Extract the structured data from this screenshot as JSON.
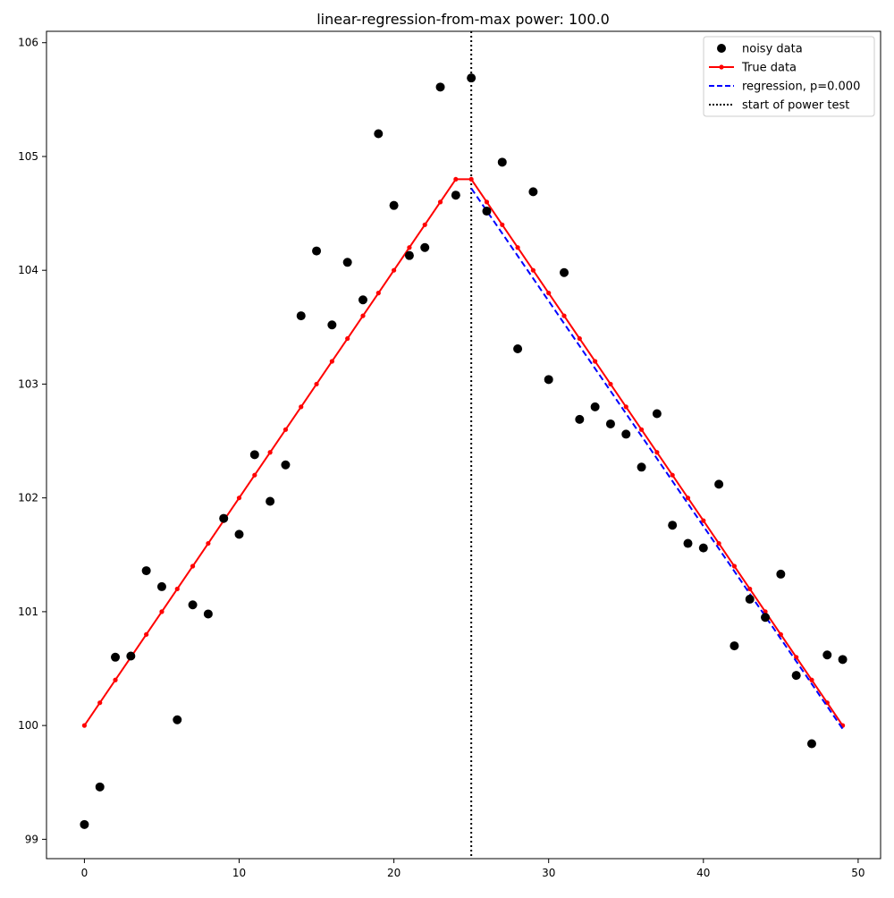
{
  "chart_data": {
    "type": "scatter",
    "title": "linear-regression-from-max power: 100.0",
    "xlabel": "",
    "ylabel": "",
    "xlim": [
      -2.45,
      51.45
    ],
    "ylim": [
      98.83,
      106.1
    ],
    "x_ticks": [
      0,
      10,
      20,
      30,
      40,
      50
    ],
    "y_ticks": [
      99,
      100,
      101,
      102,
      103,
      104,
      105,
      106
    ],
    "grid": false,
    "legend_position": "top-right",
    "series": [
      {
        "name": "noisy data",
        "kind": "scatter",
        "color": "#000000",
        "x": [
          0,
          1,
          2,
          3,
          4,
          5,
          6,
          7,
          8,
          9,
          10,
          11,
          12,
          13,
          14,
          15,
          16,
          17,
          18,
          19,
          20,
          21,
          22,
          23,
          24,
          25,
          26,
          27,
          28,
          29,
          30,
          31,
          32,
          33,
          34,
          35,
          36,
          37,
          38,
          39,
          40,
          41,
          42,
          43,
          44,
          45,
          46,
          47,
          48,
          49
        ],
        "y": [
          99.13,
          99.46,
          100.6,
          100.61,
          101.36,
          101.22,
          100.05,
          101.06,
          100.98,
          101.82,
          101.68,
          102.38,
          101.97,
          102.29,
          103.6,
          104.17,
          103.52,
          104.07,
          103.74,
          105.2,
          104.57,
          104.13,
          104.2,
          105.61,
          104.66,
          105.69,
          104.52,
          104.95,
          103.31,
          104.69,
          103.04,
          103.98,
          102.69,
          102.8,
          102.65,
          102.56,
          102.27,
          102.74,
          101.76,
          101.6,
          101.56,
          102.12,
          100.7,
          101.11,
          100.95,
          101.33,
          100.44,
          99.84,
          100.62,
          100.58
        ]
      },
      {
        "name": "True data",
        "kind": "line-markers",
        "color": "#ff0000",
        "x": [
          0,
          1,
          2,
          3,
          4,
          5,
          6,
          7,
          8,
          9,
          10,
          11,
          12,
          13,
          14,
          15,
          16,
          17,
          18,
          19,
          20,
          21,
          22,
          23,
          24,
          25,
          26,
          27,
          28,
          29,
          30,
          31,
          32,
          33,
          34,
          35,
          36,
          37,
          38,
          39,
          40,
          41,
          42,
          43,
          44,
          45,
          46,
          47,
          48,
          49
        ],
        "y": [
          100.0,
          100.2,
          100.4,
          100.6,
          100.8,
          101.0,
          101.2,
          101.4,
          101.6,
          101.8,
          102.0,
          102.2,
          102.4,
          102.6,
          102.8,
          103.0,
          103.2,
          103.4,
          103.6,
          103.8,
          104.0,
          104.2,
          104.4,
          104.6,
          104.8,
          104.8,
          104.6,
          104.4,
          104.2,
          104.0,
          103.8,
          103.6,
          103.4,
          103.2,
          103.0,
          102.8,
          102.6,
          102.4,
          102.2,
          102.0,
          101.8,
          101.6,
          101.4,
          101.2,
          101.0,
          100.8,
          100.6,
          100.4,
          100.2,
          100.0
        ]
      },
      {
        "name": "regression, p=0.000",
        "kind": "dashed-line",
        "color": "#0000ff",
        "x": [
          25,
          49
        ],
        "y": [
          104.72,
          99.97
        ]
      },
      {
        "name": "start of power test",
        "kind": "vline-dotted",
        "color": "#000000",
        "x": [
          25
        ]
      }
    ]
  }
}
